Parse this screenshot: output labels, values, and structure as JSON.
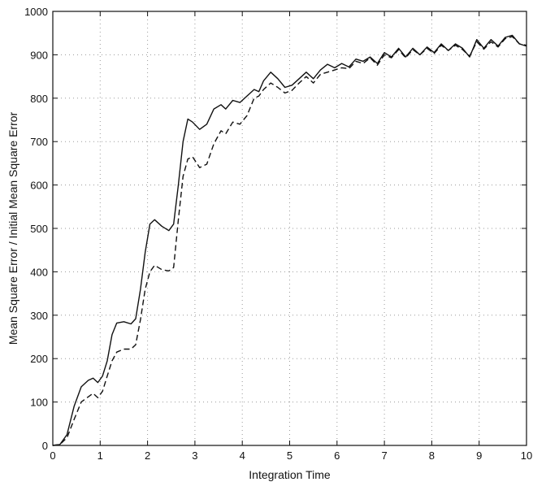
{
  "chart_data": {
    "type": "line",
    "title": "",
    "xlabel": "Integration Time",
    "ylabel": "Mean Square Error / Initial Mean Square Error",
    "xlim": [
      0,
      10
    ],
    "ylim": [
      0,
      1000
    ],
    "xticks": [
      "0",
      "1",
      "2",
      "3",
      "4",
      "5",
      "6",
      "7",
      "8",
      "9",
      "10"
    ],
    "yticks": [
      "0",
      "100",
      "200",
      "300",
      "400",
      "500",
      "600",
      "700",
      "800",
      "900",
      "1000"
    ],
    "grid": true,
    "legend": "none",
    "series": [
      {
        "style": "solid",
        "color": "#111111",
        "points": [
          [
            0,
            0
          ],
          [
            0.15,
            2
          ],
          [
            0.3,
            25
          ],
          [
            0.45,
            90
          ],
          [
            0.6,
            135
          ],
          [
            0.75,
            150
          ],
          [
            0.85,
            155
          ],
          [
            0.95,
            145
          ],
          [
            1.05,
            160
          ],
          [
            1.15,
            195
          ],
          [
            1.25,
            255
          ],
          [
            1.35,
            282
          ],
          [
            1.5,
            285
          ],
          [
            1.65,
            280
          ],
          [
            1.75,
            292
          ],
          [
            1.85,
            360
          ],
          [
            1.95,
            445
          ],
          [
            2.05,
            510
          ],
          [
            2.15,
            520
          ],
          [
            2.3,
            505
          ],
          [
            2.45,
            495
          ],
          [
            2.55,
            510
          ],
          [
            2.65,
            600
          ],
          [
            2.75,
            700
          ],
          [
            2.85,
            752
          ],
          [
            2.95,
            745
          ],
          [
            3.1,
            728
          ],
          [
            3.25,
            740
          ],
          [
            3.4,
            775
          ],
          [
            3.55,
            785
          ],
          [
            3.65,
            775
          ],
          [
            3.8,
            795
          ],
          [
            3.95,
            790
          ],
          [
            4.1,
            805
          ],
          [
            4.25,
            820
          ],
          [
            4.35,
            815
          ],
          [
            4.45,
            840
          ],
          [
            4.6,
            860
          ],
          [
            4.75,
            845
          ],
          [
            4.9,
            825
          ],
          [
            5.05,
            830
          ],
          [
            5.2,
            845
          ],
          [
            5.35,
            860
          ],
          [
            5.5,
            845
          ],
          [
            5.65,
            865
          ],
          [
            5.8,
            878
          ],
          [
            5.95,
            870
          ],
          [
            6.1,
            880
          ],
          [
            6.25,
            872
          ],
          [
            6.4,
            890
          ],
          [
            6.55,
            885
          ],
          [
            6.7,
            895
          ],
          [
            6.85,
            880
          ],
          [
            7.0,
            905
          ],
          [
            7.15,
            895
          ],
          [
            7.3,
            915
          ],
          [
            7.45,
            895
          ],
          [
            7.6,
            915
          ],
          [
            7.75,
            900
          ],
          [
            7.9,
            918
          ],
          [
            8.05,
            905
          ],
          [
            8.2,
            925
          ],
          [
            8.35,
            910
          ],
          [
            8.5,
            925
          ],
          [
            8.65,
            915
          ],
          [
            8.8,
            895
          ],
          [
            8.95,
            935
          ],
          [
            9.1,
            915
          ],
          [
            9.25,
            935
          ],
          [
            9.4,
            920
          ],
          [
            9.55,
            940
          ],
          [
            9.7,
            945
          ],
          [
            9.85,
            925
          ],
          [
            10.0,
            920
          ]
        ]
      },
      {
        "style": "dashed",
        "color": "#111111",
        "points": [
          [
            0,
            0
          ],
          [
            0.15,
            2
          ],
          [
            0.3,
            18
          ],
          [
            0.45,
            60
          ],
          [
            0.6,
            100
          ],
          [
            0.75,
            112
          ],
          [
            0.85,
            120
          ],
          [
            0.95,
            110
          ],
          [
            1.05,
            125
          ],
          [
            1.15,
            160
          ],
          [
            1.25,
            195
          ],
          [
            1.35,
            215
          ],
          [
            1.5,
            222
          ],
          [
            1.65,
            222
          ],
          [
            1.75,
            232
          ],
          [
            1.85,
            290
          ],
          [
            1.95,
            360
          ],
          [
            2.05,
            400
          ],
          [
            2.15,
            415
          ],
          [
            2.3,
            405
          ],
          [
            2.45,
            402
          ],
          [
            2.55,
            410
          ],
          [
            2.65,
            520
          ],
          [
            2.75,
            620
          ],
          [
            2.85,
            660
          ],
          [
            2.95,
            665
          ],
          [
            3.1,
            640
          ],
          [
            3.25,
            648
          ],
          [
            3.4,
            695
          ],
          [
            3.55,
            725
          ],
          [
            3.65,
            718
          ],
          [
            3.8,
            745
          ],
          [
            3.95,
            740
          ],
          [
            4.1,
            760
          ],
          [
            4.25,
            800
          ],
          [
            4.35,
            805
          ],
          [
            4.45,
            820
          ],
          [
            4.6,
            835
          ],
          [
            4.75,
            825
          ],
          [
            4.9,
            812
          ],
          [
            5.05,
            818
          ],
          [
            5.2,
            835
          ],
          [
            5.35,
            850
          ],
          [
            5.5,
            835
          ],
          [
            5.65,
            855
          ],
          [
            5.8,
            860
          ],
          [
            5.95,
            865
          ],
          [
            6.1,
            870
          ],
          [
            6.25,
            868
          ],
          [
            6.4,
            885
          ],
          [
            6.55,
            880
          ],
          [
            6.7,
            893
          ],
          [
            6.85,
            876
          ],
          [
            7.0,
            900
          ],
          [
            7.15,
            893
          ],
          [
            7.3,
            912
          ],
          [
            7.45,
            893
          ],
          [
            7.6,
            912
          ],
          [
            7.75,
            900
          ],
          [
            7.9,
            915
          ],
          [
            8.05,
            903
          ],
          [
            8.2,
            922
          ],
          [
            8.35,
            910
          ],
          [
            8.5,
            922
          ],
          [
            8.65,
            912
          ],
          [
            8.8,
            897
          ],
          [
            8.95,
            930
          ],
          [
            9.1,
            913
          ],
          [
            9.25,
            930
          ],
          [
            9.4,
            918
          ],
          [
            9.55,
            937
          ],
          [
            9.7,
            942
          ],
          [
            9.85,
            925
          ],
          [
            10.0,
            922
          ]
        ]
      }
    ]
  }
}
